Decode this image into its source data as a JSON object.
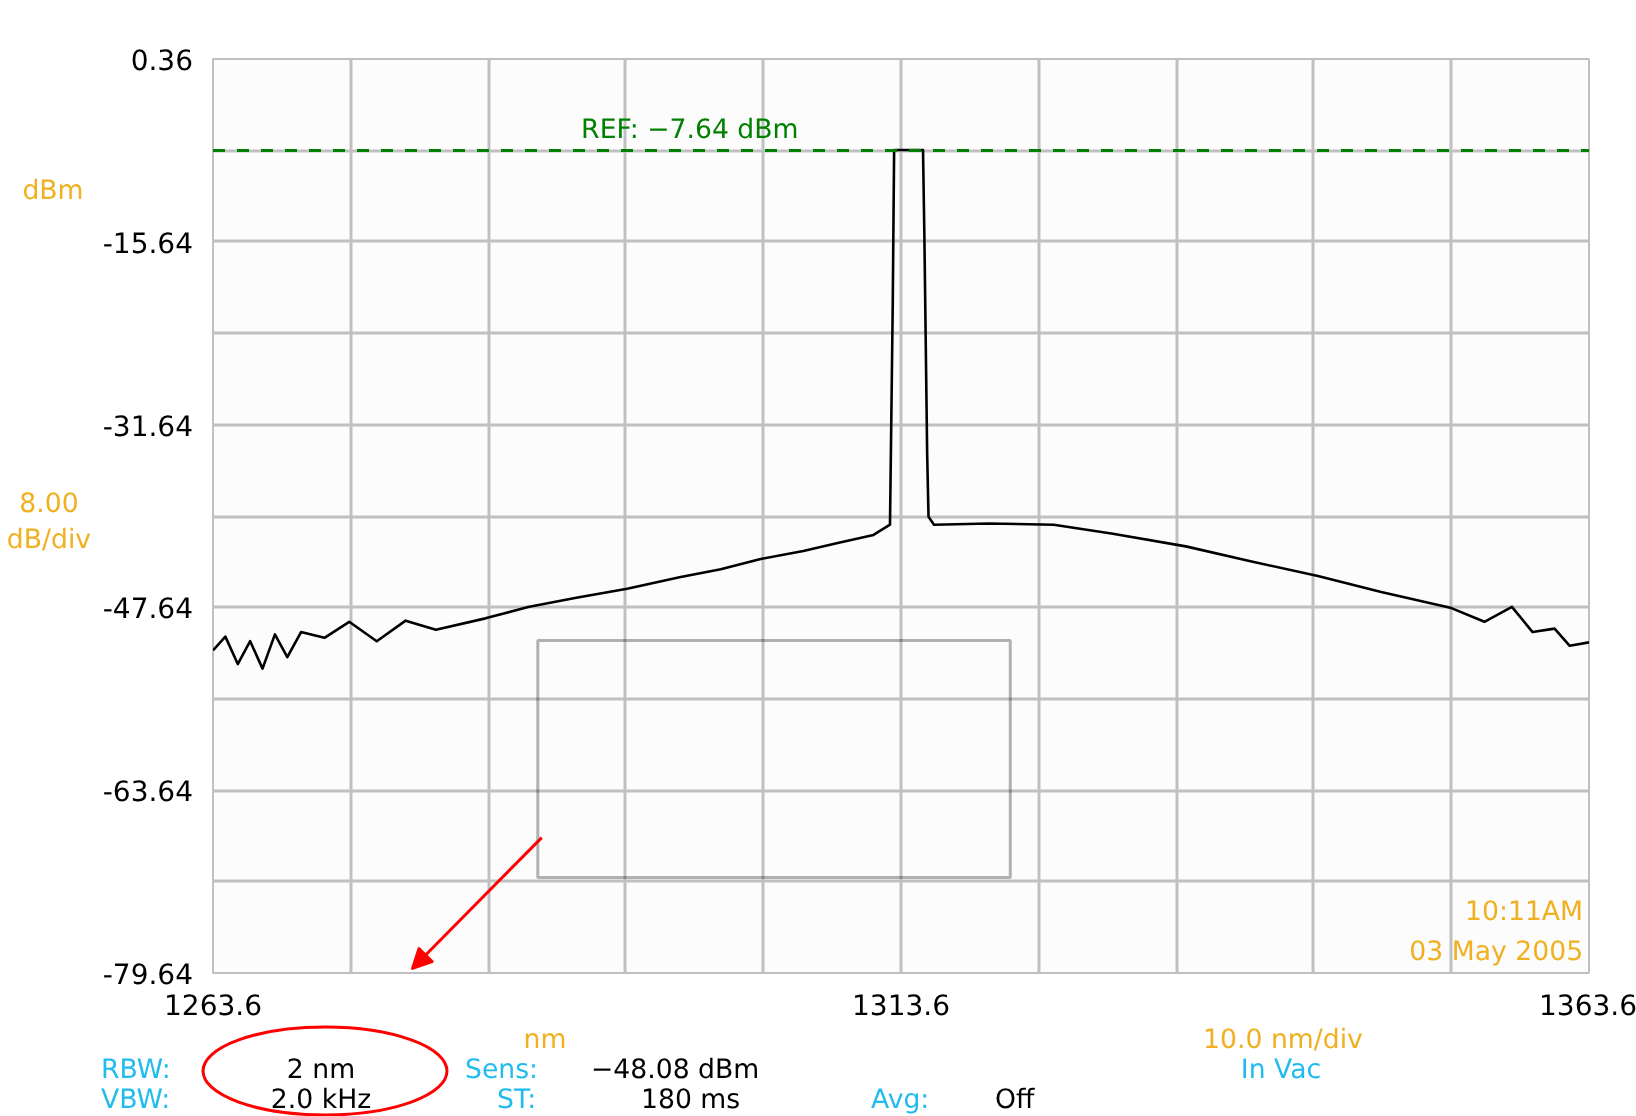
{
  "chart_data": {
    "type": "line",
    "ylabel": "dBm",
    "xlabel": "nm",
    "x": [
      1263.6,
      1264.5,
      1265.4,
      1266.3,
      1267.2,
      1268.1,
      1269.0,
      1270.0,
      1271.7,
      1273.5,
      1275.5,
      1277.6,
      1279.8,
      1283.4,
      1286.5,
      1290.0,
      1293.7,
      1297.5,
      1300.5,
      1303.4,
      1306.5,
      1309.0,
      1311.6,
      1312.8,
      1313.0,
      1313.1,
      1315.2,
      1315.3,
      1315.5,
      1315.6,
      1316.0,
      1320.0,
      1324.7,
      1329.0,
      1334.3,
      1339.0,
      1343.9,
      1348.5,
      1353.6,
      1356.0,
      1358.0,
      1359.5,
      1361.1,
      1362.2,
      1363.6
    ],
    "series": [
      {
        "color": "#000000",
        "values": [
          -51.4,
          -50.2,
          -52.6,
          -50.6,
          -53.0,
          -50.0,
          -52.0,
          -49.8,
          -50.3,
          -48.9,
          -50.6,
          -48.8,
          -49.6,
          -48.6,
          -47.6,
          -46.8,
          -46.0,
          -45.0,
          -44.3,
          -43.4,
          -42.7,
          -42.0,
          -41.3,
          -40.4,
          -21.1,
          -7.6,
          -7.6,
          -15.2,
          -34.1,
          -39.7,
          -40.4,
          -40.3,
          -40.4,
          -41.2,
          -42.3,
          -43.6,
          -44.9,
          -46.3,
          -47.7,
          -48.9,
          -47.6,
          -49.8,
          -49.5,
          -51.0,
          -50.7
        ]
      }
    ],
    "xlim": [
      1263.6,
      1363.6
    ],
    "ylim": [
      -79.64,
      0.36
    ],
    "xticks": [
      1263.6,
      {
        "value": 1273.6,
        "label": null
      },
      {
        "value": 1283.6,
        "label": null
      },
      {
        "value": 1293.6,
        "label": null
      },
      {
        "value": 1303.6,
        "label": null
      },
      1313.6,
      {
        "value": 1323.6,
        "label": null
      },
      {
        "value": 1333.6,
        "label": null
      },
      {
        "value": 1343.6,
        "label": null
      },
      {
        "value": 1353.6,
        "label": null
      },
      1363.6
    ],
    "yticks": [
      0.36,
      {
        "value": -7.64,
        "label": null
      },
      -15.64,
      {
        "value": -23.64,
        "label": null
      },
      -31.64,
      {
        "value": -39.64,
        "label": null
      },
      -47.64,
      {
        "value": -55.64,
        "label": null
      },
      -63.64,
      {
        "value": -71.64,
        "label": null
      },
      -79.64
    ],
    "ref_lines": [
      {
        "axis": "y",
        "value": -7.64,
        "label": "REF: −7.64 dBm",
        "color": "#008000",
        "line_style": "dashed"
      }
    ],
    "grid": true,
    "marker": "none",
    "line_style": "solid",
    "annotations": [
      "8.00\ndB/div",
      "10.0 nm/div",
      "10:11AM",
      "03 May 2005",
      "RBW:",
      "2 nm",
      "Sens:",
      "−48.08 dBm",
      "In Vac",
      "VBW:",
      "2.0 kHz",
      "ST:",
      "180 ms",
      "Avg:",
      "Off"
    ]
  }
}
